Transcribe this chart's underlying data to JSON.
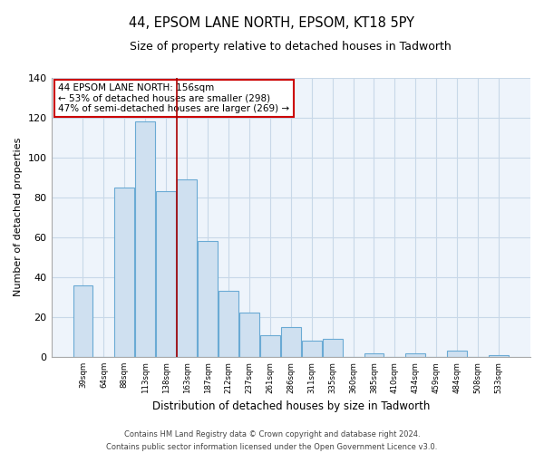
{
  "title": "44, EPSOM LANE NORTH, EPSOM, KT18 5PY",
  "subtitle": "Size of property relative to detached houses in Tadworth",
  "xlabel": "Distribution of detached houses by size in Tadworth",
  "ylabel": "Number of detached properties",
  "bar_labels": [
    "39sqm",
    "64sqm",
    "88sqm",
    "113sqm",
    "138sqm",
    "163sqm",
    "187sqm",
    "212sqm",
    "237sqm",
    "261sqm",
    "286sqm",
    "311sqm",
    "335sqm",
    "360sqm",
    "385sqm",
    "410sqm",
    "434sqm",
    "459sqm",
    "484sqm",
    "508sqm",
    "533sqm"
  ],
  "bar_values": [
    36,
    0,
    85,
    118,
    83,
    89,
    58,
    33,
    22,
    11,
    15,
    8,
    9,
    0,
    2,
    0,
    2,
    0,
    3,
    0,
    1
  ],
  "bar_color": "#cfe0f0",
  "bar_edge_color": "#6aaad4",
  "vline_x": 4.5,
  "vline_color": "#aa0000",
  "ylim": [
    0,
    140
  ],
  "yticks": [
    0,
    20,
    40,
    60,
    80,
    100,
    120,
    140
  ],
  "annotation_text": "44 EPSOM LANE NORTH: 156sqm\n← 53% of detached houses are smaller (298)\n47% of semi-detached houses are larger (269) →",
  "annotation_box_color": "#ffffff",
  "annotation_box_edgecolor": "#cc0000",
  "footer_line1": "Contains HM Land Registry data © Crown copyright and database right 2024.",
  "footer_line2": "Contains public sector information licensed under the Open Government Licence v3.0.",
  "background_color": "#ffffff",
  "plot_bg_color": "#eef4fb",
  "grid_color": "#c8d8e8"
}
